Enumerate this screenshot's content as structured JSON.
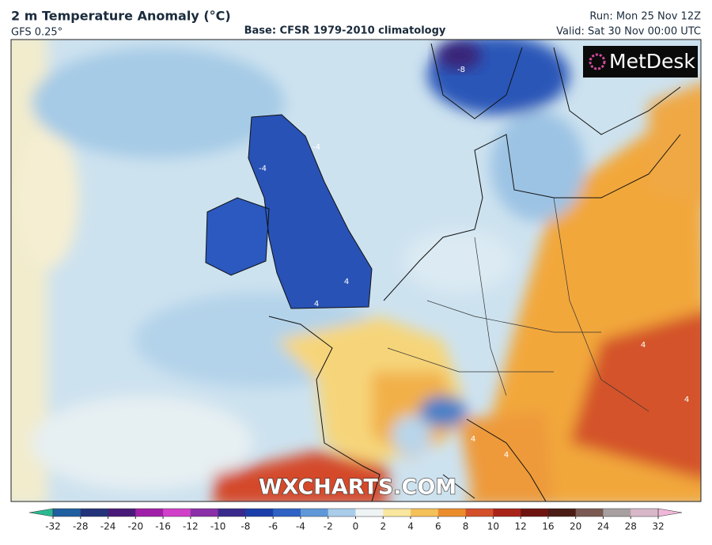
{
  "header": {
    "title": "2 m Temperature Anomaly (°C)",
    "model": "GFS 0.25°",
    "base": "Base: CFSR 1979-2010 climatology",
    "run": "Run: Mon 25 Nov 12Z",
    "valid": "Valid: Sat 30 Nov 00:00 UTC"
  },
  "logo": "MetDesk",
  "watermark": "WXCHARTS.COM",
  "contour_labels": [
    "-8",
    "-4",
    "-4",
    "4",
    "4",
    "4",
    "4",
    "4",
    "4"
  ],
  "colorbar": {
    "ticks": [
      -32,
      -28,
      -24,
      -20,
      -16,
      -12,
      -10,
      -8,
      -6,
      -4,
      -2,
      0,
      2,
      4,
      6,
      8,
      10,
      12,
      16,
      20,
      24,
      28,
      32
    ],
    "colors": [
      "#2bb890",
      "#1f5fa0",
      "#23347a",
      "#4a1a78",
      "#a01fa8",
      "#d040c8",
      "#8a2fa8",
      "#3a2a8c",
      "#1c3ea8",
      "#2f62c4",
      "#5f98d8",
      "#a9cde9",
      "#eef3f4",
      "#f9e7a0",
      "#f4c05a",
      "#eb8c2c",
      "#d3502a",
      "#a82418",
      "#6e1410",
      "#4a1c14",
      "#7a5a52",
      "#a8a0a0",
      "#d8b8c8",
      "#f0b8d8"
    ]
  }
}
